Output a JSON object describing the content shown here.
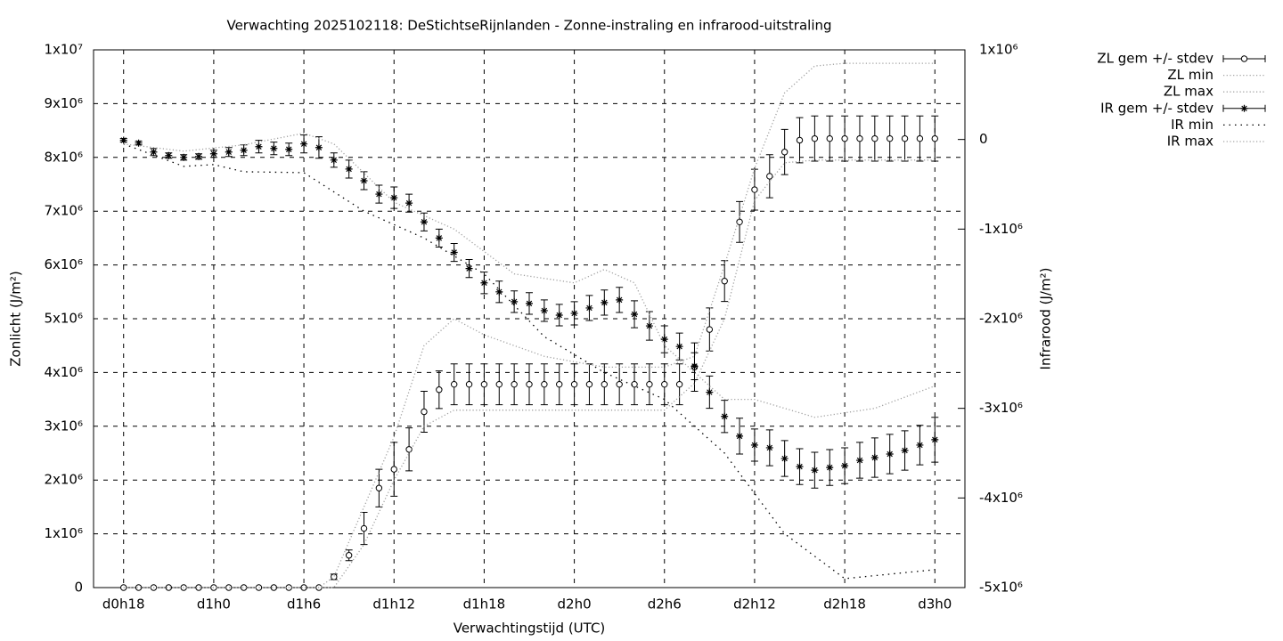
{
  "chart_data": {
    "type": "errorbar",
    "title": "Verwachting 2025102118: DeStichtseRijnlanden - Zonne-instraling en infrarood-uitstraling",
    "x_label": "Verwachtingstijd (UTC)",
    "y_label": "Zonlicht (J/m²)",
    "y2_label": "Infrarood (J/m²)",
    "xlim": [
      16,
      74
    ],
    "xticks": [
      {
        "value": 18,
        "label": "d0h18"
      },
      {
        "value": 24,
        "label": "d1h0"
      },
      {
        "value": 30,
        "label": "d1h6"
      },
      {
        "value": 36,
        "label": "d1h12"
      },
      {
        "value": 42,
        "label": "d1h18"
      },
      {
        "value": 48,
        "label": "d2h0"
      },
      {
        "value": 54,
        "label": "d2h6"
      },
      {
        "value": 60,
        "label": "d2h12"
      },
      {
        "value": 66,
        "label": "d2h18"
      },
      {
        "value": 72,
        "label": "d3h0"
      }
    ],
    "ylim": [
      0,
      10000000
    ],
    "yticks": [
      0,
      {
        "value": 1000000,
        "label": "1x10⁶"
      },
      {
        "value": 2000000,
        "label": "2x10⁶"
      },
      {
        "value": 3000000,
        "label": "3x10⁶"
      },
      {
        "value": 4000000,
        "label": "4x10⁶"
      },
      {
        "value": 5000000,
        "label": "5x10⁶"
      },
      {
        "value": 6000000,
        "label": "6x10⁶"
      },
      {
        "value": 7000000,
        "label": "7x10⁶"
      },
      {
        "value": 8000000,
        "label": "8x10⁶"
      },
      {
        "value": 9000000,
        "label": "9x10⁶"
      },
      {
        "value": 10000000,
        "label": "1x10⁷"
      }
    ],
    "y2lim": [
      -5000000,
      1000000
    ],
    "y2ticks": [
      {
        "value": 1000000,
        "label": "1x10⁶"
      },
      0,
      {
        "value": -1000000,
        "label": "-1x10⁶"
      },
      {
        "value": -2000000,
        "label": "-2x10⁶"
      },
      {
        "value": -3000000,
        "label": "-3x10⁶"
      },
      {
        "value": -4000000,
        "label": "-4x10⁶"
      },
      {
        "value": -5000000,
        "label": "-5x10⁶"
      }
    ],
    "grid": true,
    "legend": "outside-right",
    "x": [
      18,
      19,
      20,
      21,
      22,
      23,
      24,
      25,
      26,
      27,
      28,
      29,
      30,
      31,
      32,
      33,
      34,
      35,
      36,
      37,
      38,
      39,
      40,
      41,
      42,
      43,
      44,
      45,
      46,
      47,
      48,
      49,
      50,
      51,
      52,
      53,
      54,
      55,
      56,
      57,
      58,
      59,
      60,
      61,
      62,
      63,
      64,
      65,
      66,
      67,
      68,
      69,
      70,
      71,
      72
    ],
    "series": [
      {
        "name": "ZL gem +/- stdev",
        "color": "#000000",
        "style": "errorbars",
        "marker": "circle",
        "values": [
          0,
          0,
          0,
          0,
          0,
          0,
          0,
          0,
          0,
          0,
          0,
          0,
          0,
          0,
          200000,
          600000,
          1100000,
          1850000,
          2200000,
          2570000,
          3270000,
          3680000,
          3780000,
          3780000,
          3780000,
          3780000,
          3780000,
          3780000,
          3780000,
          3780000,
          3780000,
          3780000,
          3780000,
          3780000,
          3780000,
          3780000,
          3780000,
          3780000,
          4100000,
          4800000,
          5700000,
          6800000,
          7400000,
          7650000,
          8100000,
          8320000,
          8350000,
          8350000,
          8350000,
          8350000,
          8350000,
          8350000,
          8350000,
          8350000,
          8350000
        ],
        "errors": [
          0,
          0,
          0,
          0,
          0,
          0,
          0,
          0,
          0,
          0,
          0,
          0,
          0,
          0,
          50000,
          100000,
          300000,
          350000,
          500000,
          400000,
          380000,
          350000,
          380000,
          380000,
          380000,
          380000,
          380000,
          380000,
          380000,
          380000,
          380000,
          380000,
          380000,
          380000,
          380000,
          380000,
          380000,
          380000,
          450000,
          400000,
          380000,
          380000,
          380000,
          400000,
          420000,
          420000,
          420000,
          420000,
          420000,
          420000,
          420000,
          420000,
          420000,
          420000,
          420000
        ]
      },
      {
        "name": "ZL min",
        "color": "#a0a0a0",
        "style": "dotted",
        "x": [
          18,
          31,
          32,
          34,
          36,
          38,
          40,
          44,
          48,
          52,
          54,
          56,
          58,
          60,
          62,
          64,
          68,
          72
        ],
        "values": [
          0,
          0,
          0,
          800000,
          2000000,
          3000000,
          3300000,
          3300000,
          3300000,
          3300000,
          3300000,
          3800000,
          5000000,
          7200000,
          7900000,
          7950000,
          7950000,
          7950000
        ]
      },
      {
        "name": "ZL max",
        "color": "#a0a0a0",
        "style": "dotted",
        "x": [
          18,
          31,
          32,
          34,
          36,
          38,
          40,
          42,
          46,
          50,
          54,
          56,
          58,
          60,
          62,
          64,
          66,
          72
        ],
        "values": [
          0,
          0,
          200000,
          1500000,
          2800000,
          4500000,
          5000000,
          4700000,
          4300000,
          4100000,
          4100000,
          4300000,
          6000000,
          7800000,
          9200000,
          9700000,
          9750000,
          9750000
        ]
      },
      {
        "name": "IR gem +/- stdev",
        "color": "#000000",
        "style": "errorbars",
        "marker": "star",
        "axis": "y2",
        "values": [
          -8000,
          -40000,
          -140000,
          -180000,
          -200000,
          -190000,
          -160000,
          -140000,
          -120000,
          -80000,
          -100000,
          -110000,
          -50000,
          -90000,
          -230000,
          -330000,
          -460000,
          -610000,
          -650000,
          -710000,
          -920000,
          -1100000,
          -1260000,
          -1440000,
          -1600000,
          -1700000,
          -1810000,
          -1830000,
          -1910000,
          -1960000,
          -1940000,
          -1880000,
          -1820000,
          -1790000,
          -1950000,
          -2080000,
          -2230000,
          -2310000,
          -2530000,
          -2820000,
          -3090000,
          -3310000,
          -3410000,
          -3440000,
          -3560000,
          -3650000,
          -3690000,
          -3660000,
          -3640000,
          -3580000,
          -3550000,
          -3510000,
          -3470000,
          -3410000,
          -3350000
        ],
        "errors": [
          20000,
          20000,
          40000,
          30000,
          30000,
          30000,
          40000,
          50000,
          60000,
          70000,
          70000,
          70000,
          100000,
          120000,
          80000,
          100000,
          100000,
          100000,
          120000,
          100000,
          100000,
          100000,
          100000,
          100000,
          120000,
          120000,
          120000,
          120000,
          120000,
          120000,
          130000,
          140000,
          140000,
          140000,
          150000,
          160000,
          150000,
          150000,
          150000,
          180000,
          180000,
          200000,
          180000,
          200000,
          200000,
          200000,
          200000,
          200000,
          200000,
          200000,
          220000,
          220000,
          220000,
          220000,
          250000
        ]
      },
      {
        "name": "IR min",
        "color": "#000000",
        "style": "sparse-dotted",
        "axis": "y2",
        "x": [
          18,
          22,
          24,
          26,
          30,
          34,
          38,
          42,
          46,
          50,
          54,
          58,
          62,
          66,
          72
        ],
        "values": [
          -50000,
          -300000,
          -280000,
          -360000,
          -370000,
          -800000,
          -1100000,
          -1500000,
          -2200000,
          -2600000,
          -2900000,
          -3500000,
          -4400000,
          -4900000,
          -4800000
        ]
      },
      {
        "name": "IR max",
        "color": "#a0a0a0",
        "style": "dotted",
        "axis": "y2",
        "x": [
          18,
          22,
          26,
          30,
          32,
          36,
          40,
          44,
          48,
          50,
          52,
          54,
          56,
          58,
          60,
          64,
          68,
          72
        ],
        "values": [
          -50000,
          -130000,
          -60000,
          70000,
          -50000,
          -700000,
          -1000000,
          -1500000,
          -1600000,
          -1450000,
          -1600000,
          -2300000,
          -2600000,
          -2900000,
          -2900000,
          -3100000,
          -3000000,
          -2750000
        ]
      }
    ]
  }
}
